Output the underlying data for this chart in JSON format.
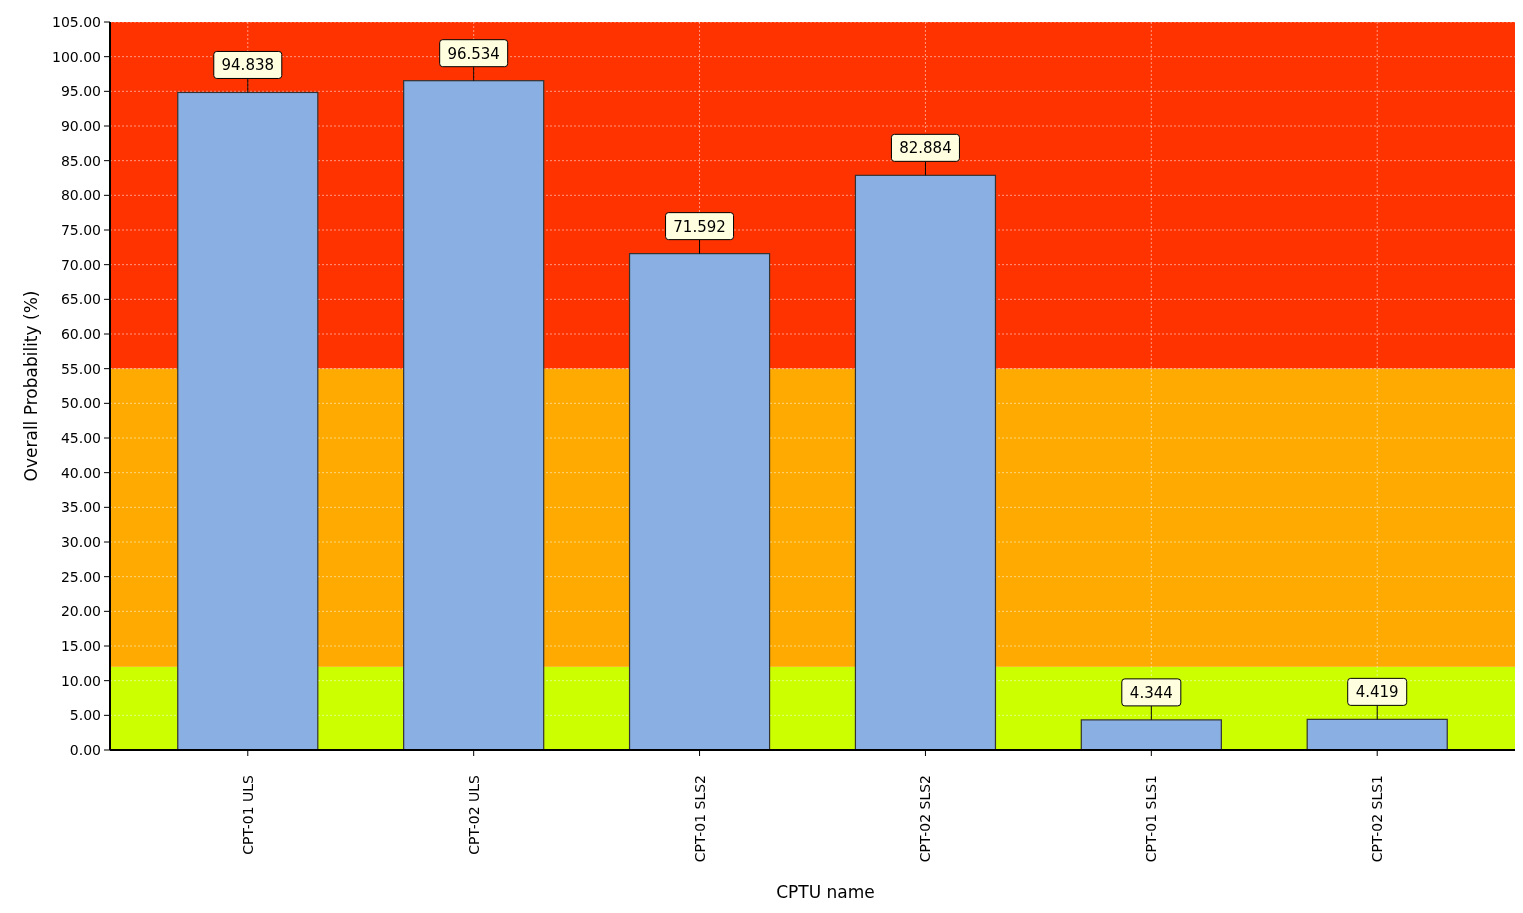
{
  "chart_data": {
    "type": "bar",
    "xlabel": "CPTU name",
    "ylabel": "Overall Probability (%)",
    "categories": [
      "CPT-01 ULS",
      "CPT-02 ULS",
      "CPT-01 SLS2",
      "CPT-02 SLS2",
      "CPT-01 SLS1",
      "CPT-02 SLS1"
    ],
    "values": [
      94.838,
      96.534,
      71.592,
      82.884,
      4.344,
      4.419
    ],
    "color": "#8aafe2",
    "data_labels": true,
    "ylim": [
      0,
      105
    ],
    "yticks": [
      {
        "value": 0,
        "label": "0.00"
      },
      {
        "value": 5,
        "label": "5.00"
      },
      {
        "value": 10,
        "label": "10.00"
      },
      {
        "value": 15,
        "label": "15.00"
      },
      {
        "value": 20,
        "label": "20.00"
      },
      {
        "value": 25,
        "label": "25.00"
      },
      {
        "value": 30,
        "label": "30.00"
      },
      {
        "value": 35,
        "label": "35.00"
      },
      {
        "value": 40,
        "label": "40.00"
      },
      {
        "value": 45,
        "label": "45.00"
      },
      {
        "value": 50,
        "label": "50.00"
      },
      {
        "value": 55,
        "label": "55.00"
      },
      {
        "value": 60,
        "label": "60.00"
      },
      {
        "value": 65,
        "label": "65.00"
      },
      {
        "value": 70,
        "label": "70.00"
      },
      {
        "value": 75,
        "label": "75.00"
      },
      {
        "value": 80,
        "label": "80.00"
      },
      {
        "value": 85,
        "label": "85.00"
      },
      {
        "value": 90,
        "label": "90.00"
      },
      {
        "value": 95,
        "label": "95.00"
      },
      {
        "value": 100,
        "label": "100.00"
      },
      {
        "value": 105,
        "label": "105.00"
      }
    ],
    "bands": [
      {
        "axis": "y",
        "from": 0,
        "to": 12,
        "color": "#ccff00"
      },
      {
        "axis": "y",
        "from": 12,
        "to": 55,
        "color": "#ffaa00"
      },
      {
        "axis": "y",
        "from": 55,
        "to": 105,
        "color": "#ff3300"
      }
    ],
    "grid": true
  }
}
